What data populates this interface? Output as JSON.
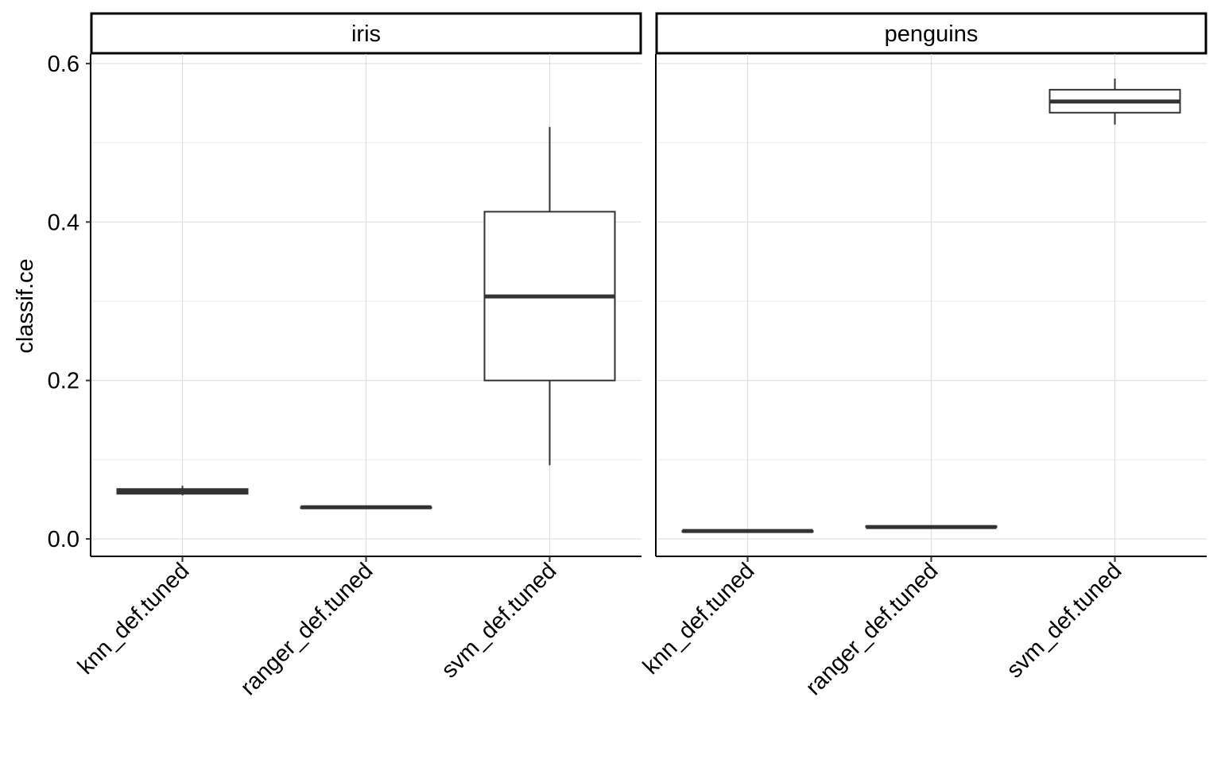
{
  "chart_data": {
    "type": "boxplot",
    "ylabel": "classif.ce",
    "xlabel": "",
    "ylim": [
      -0.022,
      0.612
    ],
    "yticks": [
      0.0,
      0.2,
      0.4,
      0.6
    ],
    "ytick_labels": [
      "0.0",
      "0.2",
      "0.4",
      "0.6"
    ],
    "grid": true,
    "categories": [
      "knn_def.tuned",
      "ranger_def.tuned",
      "svm_def.tuned"
    ],
    "panels": [
      {
        "name": "iris",
        "boxes": [
          {
            "category": "knn_def.tuned",
            "lower_whisker": 0.055,
            "q1": 0.057,
            "median": 0.06,
            "q3": 0.063,
            "upper_whisker": 0.067
          },
          {
            "category": "ranger_def.tuned",
            "lower_whisker": 0.039,
            "q1": 0.039,
            "median": 0.04,
            "q3": 0.04,
            "upper_whisker": 0.04
          },
          {
            "category": "svm_def.tuned",
            "lower_whisker": 0.093,
            "q1": 0.2,
            "median": 0.306,
            "q3": 0.413,
            "upper_whisker": 0.52
          }
        ]
      },
      {
        "name": "penguins",
        "boxes": [
          {
            "category": "knn_def.tuned",
            "lower_whisker": 0.009,
            "q1": 0.009,
            "median": 0.01,
            "q3": 0.01,
            "upper_whisker": 0.011
          },
          {
            "category": "ranger_def.tuned",
            "lower_whisker": 0.015,
            "q1": 0.015,
            "median": 0.015,
            "q3": 0.016,
            "upper_whisker": 0.016
          },
          {
            "category": "svm_def.tuned",
            "lower_whisker": 0.523,
            "q1": 0.538,
            "median": 0.552,
            "q3": 0.567,
            "upper_whisker": 0.581
          }
        ]
      }
    ]
  }
}
